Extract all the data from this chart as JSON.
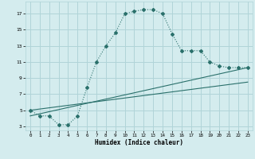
{
  "xlabel": "Humidex (Indice chaleur)",
  "bg_color": "#d4ecee",
  "grid_color": "#b0d4d8",
  "line_color": "#2a706b",
  "xlim": [
    -0.5,
    23.5
  ],
  "ylim": [
    2.5,
    18.5
  ],
  "xticks": [
    0,
    1,
    2,
    3,
    4,
    5,
    6,
    7,
    8,
    9,
    10,
    11,
    12,
    13,
    14,
    15,
    16,
    17,
    18,
    19,
    20,
    21,
    22,
    23
  ],
  "yticks": [
    3,
    5,
    7,
    9,
    11,
    13,
    15,
    17
  ],
  "curve1_x": [
    0,
    1,
    2,
    3,
    4,
    5,
    6,
    7,
    8,
    9,
    10,
    11,
    12,
    13,
    14,
    15,
    16,
    17,
    18,
    19,
    20,
    21,
    22,
    23
  ],
  "curve1_y": [
    5.0,
    4.3,
    4.3,
    3.2,
    3.2,
    4.3,
    7.8,
    11.0,
    13.0,
    14.6,
    17.0,
    17.3,
    17.5,
    17.5,
    17.0,
    14.5,
    12.4,
    12.4,
    12.4,
    11.0,
    10.5,
    10.3,
    10.3,
    10.3
  ],
  "line2_x": [
    0,
    23
  ],
  "line2_y": [
    5.0,
    8.5
  ],
  "line3_x": [
    0,
    23
  ],
  "line3_y": [
    4.3,
    10.3
  ]
}
